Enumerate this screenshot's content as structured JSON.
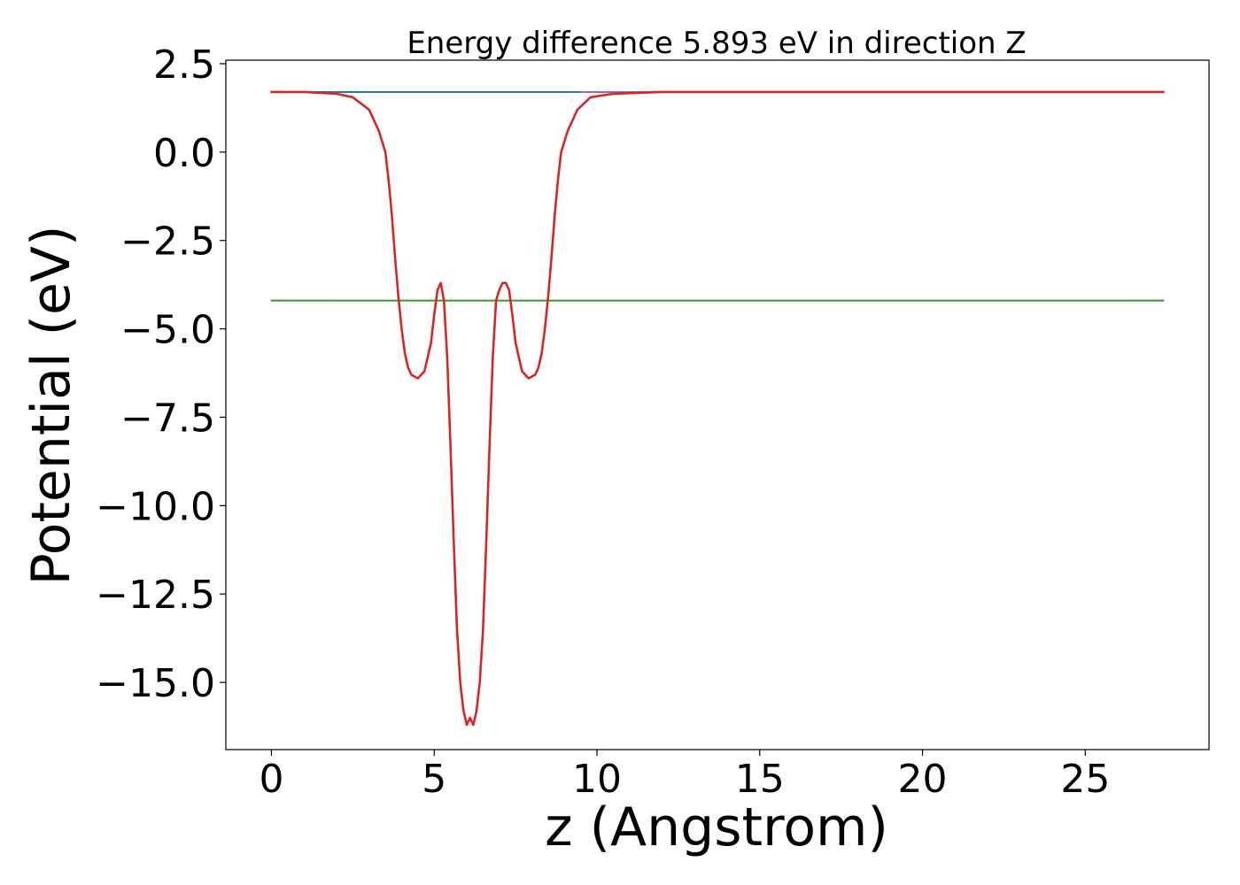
{
  "chart_data": {
    "type": "line",
    "title": "Energy difference 5.893 eV in direction Z",
    "xlabel": "z (Angstrom)",
    "ylabel": "Potential (eV)",
    "xlim": [
      -1.4,
      28.8
    ],
    "ylim": [
      -16.9,
      2.6
    ],
    "xticks": [
      0,
      5,
      10,
      15,
      20,
      25
    ],
    "xtick_labels": [
      "0",
      "5",
      "10",
      "15",
      "20",
      "25"
    ],
    "yticks": [
      2.5,
      0.0,
      -2.5,
      -5.0,
      -7.5,
      -10.0,
      -12.5,
      -15.0
    ],
    "ytick_labels": [
      "2.5",
      "0.0",
      "−2.5",
      "−5.0",
      "−7.5",
      "−10.0",
      "−12.5",
      "−15.0"
    ],
    "grid": false,
    "legend": "none",
    "series": [
      {
        "color": "#1f77b4",
        "x": [
          0.0,
          27.4
        ],
        "y": [
          1.7,
          1.7
        ]
      },
      {
        "color": "#2ca02c",
        "x": [
          0.0,
          27.4
        ],
        "y": [
          -4.2,
          -4.2
        ]
      },
      {
        "color": "#9467bd",
        "x": [
          9.5,
          27.4
        ],
        "y": [
          1.7,
          1.7
        ]
      },
      {
        "color": "#d62728",
        "x": [
          0.0,
          1.0,
          2.0,
          2.5,
          3.0,
          3.3,
          3.5,
          3.6,
          3.7,
          3.8,
          3.9,
          4.0,
          4.1,
          4.2,
          4.3,
          4.5,
          4.7,
          4.9,
          5.0,
          5.1,
          5.2,
          5.3,
          5.4,
          5.5,
          5.6,
          5.7,
          5.8,
          5.9,
          6.0,
          6.1,
          6.2,
          6.3,
          6.4,
          6.5,
          6.6,
          6.7,
          6.8,
          6.9,
          7.0,
          7.1,
          7.2,
          7.3,
          7.4,
          7.5,
          7.7,
          7.9,
          8.1,
          8.2,
          8.3,
          8.4,
          8.5,
          8.6,
          8.7,
          8.8,
          8.9,
          9.1,
          9.4,
          9.8,
          10.5,
          12.0,
          15.0,
          20.0,
          27.4
        ],
        "y": [
          1.7,
          1.7,
          1.65,
          1.55,
          1.2,
          0.6,
          0.0,
          -0.8,
          -1.8,
          -3.0,
          -4.1,
          -5.0,
          -5.7,
          -6.1,
          -6.3,
          -6.4,
          -6.2,
          -5.4,
          -4.6,
          -3.9,
          -3.7,
          -4.2,
          -5.8,
          -8.3,
          -11.0,
          -13.5,
          -15.0,
          -15.8,
          -16.2,
          -16.0,
          -16.2,
          -15.8,
          -15.0,
          -13.5,
          -11.0,
          -8.3,
          -5.8,
          -4.2,
          -3.9,
          -3.7,
          -3.7,
          -3.9,
          -4.6,
          -5.4,
          -6.2,
          -6.4,
          -6.3,
          -6.1,
          -5.7,
          -5.0,
          -4.1,
          -3.0,
          -1.8,
          -0.8,
          0.0,
          0.6,
          1.2,
          1.55,
          1.65,
          1.7,
          1.7,
          1.7,
          1.7
        ]
      }
    ]
  }
}
